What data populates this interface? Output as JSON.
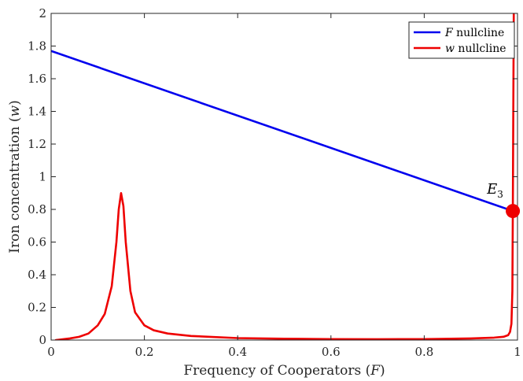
{
  "chart_data": {
    "type": "line",
    "xlabel": "Frequency of Cooperators (F)",
    "ylabel": "Iron concentration (w)",
    "xlim": [
      0,
      1
    ],
    "ylim": [
      0,
      2
    ],
    "xticks": [
      0,
      0.2,
      0.4,
      0.6,
      0.8,
      1
    ],
    "xtick_labels": [
      "0",
      "0.2",
      "0.4",
      "0.6",
      "0.8",
      "1"
    ],
    "yticks": [
      0,
      0.2,
      0.4,
      0.6,
      0.8,
      1,
      1.2,
      1.4,
      1.6,
      1.8,
      2
    ],
    "ytick_labels": [
      "0",
      "0.2",
      "0.4",
      "0.6",
      "0.8",
      "1",
      "1.2",
      "1.4",
      "1.6",
      "1.8",
      "2"
    ],
    "grid": false,
    "legend_position": "top-right",
    "series": [
      {
        "name": "F nullcline",
        "color": "#0000ee",
        "x": [
          0,
          0.99
        ],
        "y": [
          1.77,
          0.79
        ]
      },
      {
        "name": "w nullcline",
        "color": "#ee0000",
        "x": [
          0.01,
          0.04,
          0.06,
          0.08,
          0.1,
          0.115,
          0.13,
          0.14,
          0.145,
          0.15,
          0.155,
          0.16,
          0.17,
          0.18,
          0.2,
          0.22,
          0.25,
          0.3,
          0.4,
          0.5,
          0.6,
          0.7,
          0.8,
          0.9,
          0.95,
          0.97,
          0.98,
          0.984,
          0.987,
          0.989,
          0.99,
          0.991,
          0.992
        ],
        "y": [
          0.0,
          0.01,
          0.02,
          0.04,
          0.09,
          0.16,
          0.33,
          0.6,
          0.8,
          0.9,
          0.82,
          0.6,
          0.3,
          0.17,
          0.09,
          0.06,
          0.04,
          0.025,
          0.012,
          0.008,
          0.006,
          0.005,
          0.006,
          0.01,
          0.015,
          0.02,
          0.03,
          0.05,
          0.1,
          0.3,
          0.79,
          1.4,
          2.0
        ]
      }
    ],
    "equilibrium_point": {
      "label": "E",
      "subscript": "3",
      "x": 0.99,
      "y": 0.79,
      "color": "#ee0000"
    }
  }
}
